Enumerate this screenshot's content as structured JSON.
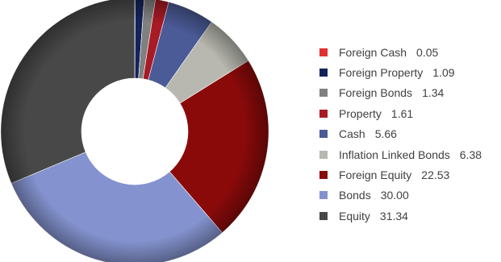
{
  "chart_data": {
    "type": "pie",
    "variant": "donut",
    "title": "",
    "legend_position": "right",
    "slices": [
      {
        "name": "Foreign Cash",
        "value": 0.05,
        "value_label": "0.05",
        "color": "#e03030"
      },
      {
        "name": "Foreign Property",
        "value": 1.09,
        "value_label": "1.09",
        "color": "#14245a"
      },
      {
        "name": "Foreign Bonds",
        "value": 1.34,
        "value_label": "1.34",
        "color": "#808080"
      },
      {
        "name": "Property",
        "value": 1.61,
        "value_label": "1.61",
        "color": "#a81a24"
      },
      {
        "name": "Cash",
        "value": 5.66,
        "value_label": "5.66",
        "color": "#4b5b98"
      },
      {
        "name": "Inflation Linked Bonds",
        "value": 6.38,
        "value_label": "6.38",
        "color": "#b8b8b0"
      },
      {
        "name": "Foreign Equity",
        "value": 22.53,
        "value_label": "22.53",
        "color": "#8a0a0a"
      },
      {
        "name": "Bonds",
        "value": 30.0,
        "value_label": "30.00",
        "color": "#8493cf"
      },
      {
        "name": "Equity",
        "value": 31.34,
        "value_label": "31.34",
        "color": "#484848"
      }
    ]
  }
}
